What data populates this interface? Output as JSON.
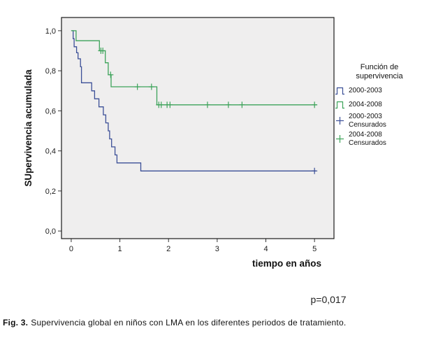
{
  "chart_data": {
    "type": "line",
    "subtype": "kaplan-meier-step-survival",
    "title": "",
    "xlabel": "tiempo en años",
    "ylabel": "SUpervivencia acumulada",
    "xlim": [
      -0.2,
      5.4
    ],
    "ylim": [
      -0.038,
      1.066
    ],
    "xticks": [
      0,
      1,
      2,
      3,
      4,
      5
    ],
    "xtick_labels": [
      "0",
      "1",
      "2",
      "3",
      "4",
      "5"
    ],
    "yticks": [
      0.0,
      0.2,
      0.4,
      0.6,
      0.8,
      1.0
    ],
    "ytick_labels": [
      "0,0",
      "0,2",
      "0,4",
      "0,6",
      "0,8",
      "1,0"
    ],
    "grid": false,
    "legend_position": "right",
    "plot_bg": "#efeeee",
    "frame_color": "#1a1a1a",
    "series": [
      {
        "name": "2000-2003",
        "color": "#3b4f97",
        "steps": [
          [
            0.0,
            1.0
          ],
          [
            0.04,
            0.96
          ],
          [
            0.06,
            0.92
          ],
          [
            0.11,
            0.89
          ],
          [
            0.14,
            0.86
          ],
          [
            0.19,
            0.82
          ],
          [
            0.21,
            0.74
          ],
          [
            0.42,
            0.7
          ],
          [
            0.48,
            0.66
          ],
          [
            0.57,
            0.62
          ],
          [
            0.66,
            0.58
          ],
          [
            0.71,
            0.54
          ],
          [
            0.76,
            0.5
          ],
          [
            0.79,
            0.46
          ],
          [
            0.83,
            0.42
          ],
          [
            0.9,
            0.38
          ],
          [
            0.94,
            0.34
          ],
          [
            1.43,
            0.3
          ]
        ],
        "end": 5.03,
        "censored": [
          [
            5.0,
            0.3
          ]
        ]
      },
      {
        "name": "2004-2008",
        "color": "#3da35a",
        "steps": [
          [
            0.0,
            1.0
          ],
          [
            0.1,
            0.95
          ],
          [
            0.58,
            0.9
          ],
          [
            0.7,
            0.84
          ],
          [
            0.76,
            0.78
          ],
          [
            0.82,
            0.72
          ],
          [
            1.76,
            0.63
          ]
        ],
        "end": 5.05,
        "censored": [
          [
            0.61,
            0.9
          ],
          [
            0.65,
            0.9
          ],
          [
            0.81,
            0.78
          ],
          [
            1.36,
            0.72
          ],
          [
            1.65,
            0.72
          ],
          [
            1.8,
            0.63
          ],
          [
            1.85,
            0.63
          ],
          [
            1.97,
            0.63
          ],
          [
            2.03,
            0.63
          ],
          [
            2.8,
            0.63
          ],
          [
            3.23,
            0.63
          ],
          [
            3.51,
            0.63
          ],
          [
            5.0,
            0.63
          ]
        ]
      }
    ]
  },
  "legend": {
    "title_lines": [
      "Función de",
      "supervivencia"
    ],
    "items": [
      {
        "lines": [
          "2000-2003"
        ],
        "glyph": "step",
        "color": "#3b4f97"
      },
      {
        "lines": [
          "2004-2008"
        ],
        "glyph": "step",
        "color": "#3da35a"
      },
      {
        "lines": [
          "2000-2003",
          "Censurados"
        ],
        "glyph": "plus",
        "color": "#3b4f97"
      },
      {
        "lines": [
          "2004-2008",
          "Censurados"
        ],
        "glyph": "plus",
        "color": "#3da35a"
      }
    ]
  },
  "annotations": {
    "p_value": "p=0,017"
  },
  "caption": {
    "prefix": "Fig. 3.",
    "text": "Supervivencia global en niños con LMA en los diferentes periodos de tratamiento."
  }
}
